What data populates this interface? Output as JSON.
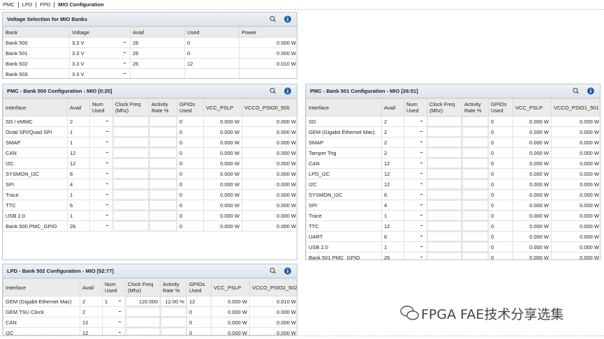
{
  "breadcrumb": [
    "PMC",
    "LPD",
    "FPD",
    "MIO Configuration"
  ],
  "panels": [
    {
      "title": "Voltage Selection for MIO Banks",
      "columns": [
        "Bank",
        "Voltage",
        "Avail",
        "Used",
        "Power"
      ],
      "rows": [
        [
          "Bank 500",
          "3.3 V",
          "26",
          "0",
          "0.000 W"
        ],
        [
          "Bank 501",
          "3.3 V",
          "26",
          "0",
          "0.000 W"
        ],
        [
          "Bank 502",
          "3.3 V",
          "26",
          "12",
          "0.010 W"
        ],
        [
          "Bank 503",
          "3.3 V",
          null,
          null,
          null
        ]
      ]
    },
    {
      "title": "PMC - Bank 500 Configuration - MIO [0:25]",
      "columns": [
        "Interface",
        "Avail",
        "Num Used",
        "Clock Freq (Mhz)",
        "Activity Rate %",
        "GPIOs Used",
        "VCC_PSLP",
        "VCCO_PSIO0_500"
      ],
      "rows": [
        [
          "SD / eMMC",
          "2",
          null,
          null,
          null,
          "0",
          "0.000 W",
          "0.000 W"
        ],
        [
          "Octal SPI/Quad SPI",
          "1",
          null,
          null,
          null,
          "0",
          "0.000 W",
          "0.000 W"
        ],
        [
          "SMAP",
          "1",
          null,
          null,
          null,
          "0",
          "0.000 W",
          "0.000 W"
        ],
        [
          "CAN",
          "12",
          null,
          null,
          null,
          "0",
          "0.000 W",
          "0.000 W"
        ],
        [
          "I2C",
          "12",
          null,
          null,
          null,
          "0",
          "0.000 W",
          "0.000 W"
        ],
        [
          "SYSMON_I2C",
          "6",
          null,
          null,
          null,
          "0",
          "0.000 W",
          "0.000 W"
        ],
        [
          "SPI",
          "4",
          null,
          null,
          null,
          "0",
          "0.000 W",
          "0.000 W"
        ],
        [
          "Trace",
          "1",
          null,
          null,
          null,
          "0",
          "0.000 W",
          "0.000 W"
        ],
        [
          "TTC",
          "6",
          null,
          null,
          null,
          "0",
          "0.000 W",
          "0.000 W"
        ],
        [
          "USB 2.0",
          "1",
          null,
          null,
          null,
          "0",
          "0.000 W",
          "0.000 W"
        ],
        [
          "Bank 500 PMC_GPIO",
          "26",
          null,
          null,
          null,
          "0",
          "0.000 W",
          "0.000 W"
        ]
      ]
    },
    {
      "title": "PMC - Bank 501 Configuration - MIO [26:51]",
      "columns": [
        "Interface",
        "Avail",
        "Num Used",
        "Clock Freq (Mhz)",
        "Activity Rate %",
        "GPIOs Used",
        "VCC_PSLP",
        "VCCO_PSIO1_501"
      ],
      "rows": [
        [
          "SD",
          "2",
          null,
          null,
          null,
          "0",
          "0.000 W",
          "0.000 W"
        ],
        [
          "GEM (Gigabit Ethernet Mac)",
          "2",
          null,
          null,
          null,
          "0",
          "0.000 W",
          "0.000 W"
        ],
        [
          "SMAP",
          "2",
          null,
          null,
          null,
          "0",
          "0.000 W",
          "0.000 W"
        ],
        [
          "Tamper Trig",
          "2",
          null,
          null,
          null,
          "0",
          "0.000 W",
          "0.000 W"
        ],
        [
          "CAN",
          "12",
          null,
          null,
          null,
          "0",
          "0.000 W",
          "0.000 W"
        ],
        [
          "LPD_I2C",
          "12",
          null,
          null,
          null,
          "0",
          "0.000 W",
          "0.000 W"
        ],
        [
          "I2C",
          "12",
          null,
          null,
          null,
          "0",
          "0.000 W",
          "0.000 W"
        ],
        [
          "SYSMON_I2C",
          "6",
          null,
          null,
          null,
          "0",
          "0.000 W",
          "0.000 W"
        ],
        [
          "SPI",
          "4",
          null,
          null,
          null,
          "0",
          "0.000 W",
          "0.000 W"
        ],
        [
          "Trace",
          "1",
          null,
          null,
          null,
          "0",
          "0.000 W",
          "0.000 W"
        ],
        [
          "TTC",
          "12",
          null,
          null,
          null,
          "0",
          "0.000 W",
          "0.000 W"
        ],
        [
          "UART",
          "6",
          null,
          null,
          null,
          "0",
          "0.000 W",
          "0.000 W"
        ],
        [
          "USB 2.0",
          "1",
          null,
          null,
          null,
          "0",
          "0.000 W",
          "0.000 W"
        ],
        [
          "Bank 501 PMC_GPIO",
          "26",
          null,
          null,
          null,
          "0",
          "0.000 W",
          "0.000 W"
        ]
      ]
    },
    {
      "title": "LPD - Bank 502 Configuration - MIO [52:77]",
      "columns": [
        "Interface",
        "Avail",
        "Num Used",
        "Clock Freq (Mhz)",
        "Activity Rate %",
        "GPIOs Used",
        "VCC_PSLP",
        "VCCO_PSIO2_502"
      ],
      "rows": [
        [
          "GEM (Gigabit Ethernet Mac)",
          "2",
          "1",
          "120.000",
          "12.00 %",
          "12",
          "0.000 W",
          "0.010 W"
        ],
        [
          "GEM TSU Clock",
          "2",
          null,
          null,
          null,
          "0",
          "0.000 W",
          "0.000 W"
        ],
        [
          "CAN",
          "12",
          null,
          null,
          null,
          "0",
          "0.000 W",
          "0.000 W"
        ],
        [
          "I2C",
          "12",
          null,
          null,
          null,
          "0",
          "0.000 W",
          "0.000 W"
        ]
      ]
    }
  ],
  "watermark": "FPGA FAE技术分享选集"
}
